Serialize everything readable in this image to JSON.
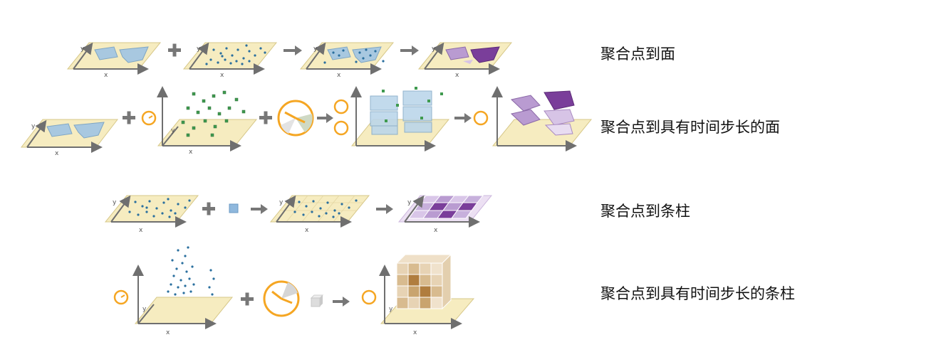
{
  "rows": [
    {
      "label": "聚合点到面"
    },
    {
      "label": "聚合点到具有时间步长的面"
    },
    {
      "label": "聚合点到条柱"
    },
    {
      "label": "聚合点到具有时间步长的条柱"
    }
  ],
  "axis_labels": {
    "x": "x",
    "y": "y"
  },
  "icons": [
    "plane-icon",
    "plus-icon",
    "arrow-icon",
    "clock-icon",
    "cube-icon",
    "bin-square-icon"
  ],
  "colors": {
    "plane": "#f6ecc0",
    "axis": "#6f6f6f",
    "polygon_blue": "#a8c8e0",
    "points_blue": "#2a6f9e",
    "purple_dark": "#7a3e9a",
    "purple_light": "#b99bd1",
    "clock_orange": "#f5a623",
    "point_green": "#3f9a4f",
    "cube_brown": "#c9a46e"
  }
}
